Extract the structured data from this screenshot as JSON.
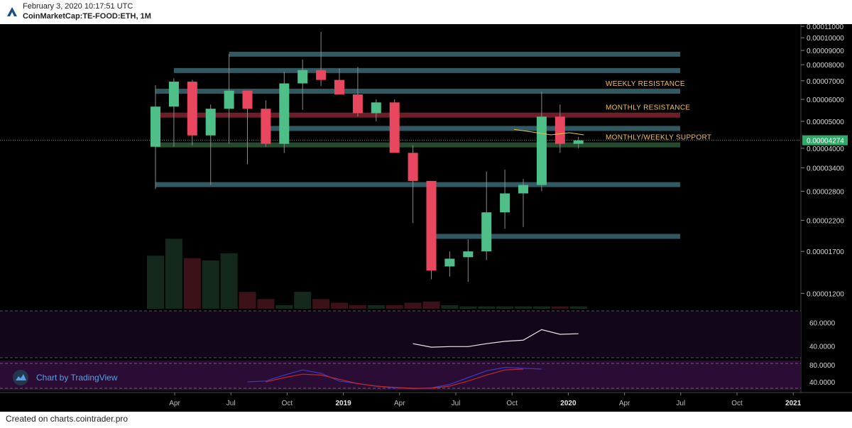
{
  "header": {
    "timestamp": "February 3, 2020 10:17:51 UTC",
    "symbol": "CoinMarketCap:TE-FOOD:ETH, 1M"
  },
  "footer": {
    "credit": "Created on charts.cointrader.pro"
  },
  "watermark": {
    "label": "Chart by TradingView"
  },
  "colors": {
    "background": "#000000",
    "up": "#4fbf8a",
    "down": "#e9475f",
    "resistance_band": "#3d6f7a",
    "monthly_resistance": "#8b2430",
    "green_band": "#2e5e3a",
    "price_tag": "#2faa6a",
    "annotation": "#f0c060",
    "oscillator_bg": "#12061a",
    "oscillator2_bg": "#2a0c35"
  },
  "chart_data": [
    {
      "type": "candlestick",
      "title": "",
      "scale": "log",
      "ylim": [
        1.05e-05,
        0.000112
      ],
      "price_axis_ticks": [
        "0.00011000",
        "0.00010000",
        "0.00009000",
        "0.00008000",
        "0.00007000",
        "0.00006000",
        "0.00005000",
        "0.00004000",
        "0.00003400",
        "0.00002800",
        "0.00002200",
        "0.00001700",
        "0.00001200"
      ],
      "last_price_label": "0.00004274",
      "time_axis_labels": [
        "Apr",
        "Jul",
        "Oct",
        "2019",
        "Apr",
        "Jul",
        "Oct",
        "2020",
        "Apr",
        "Jul",
        "Oct",
        "2021"
      ],
      "candles": [
        {
          "o": 4.05e-05,
          "h": 6.75e-05,
          "l": 2.85e-05,
          "c": 5.65e-05
        },
        {
          "o": 5.65e-05,
          "h": 7.15e-05,
          "l": 4.05e-05,
          "c": 6.95e-05
        },
        {
          "o": 6.95e-05,
          "h": 7.05e-05,
          "l": 4.1e-05,
          "c": 4.45e-05
        },
        {
          "o": 4.45e-05,
          "h": 5.75e-05,
          "l": 2.95e-05,
          "c": 5.55e-05
        },
        {
          "o": 5.55e-05,
          "h": 8.75e-05,
          "l": 4.15e-05,
          "c": 6.45e-05
        },
        {
          "o": 6.45e-05,
          "h": 6.45e-05,
          "l": 3.5e-05,
          "c": 5.55e-05
        },
        {
          "o": 5.55e-05,
          "h": 5.95e-05,
          "l": 4.05e-05,
          "c": 4.15e-05
        },
        {
          "o": 4.15e-05,
          "h": 7.55e-05,
          "l": 3.85e-05,
          "c": 6.85e-05
        },
        {
          "o": 6.85e-05,
          "h": 8.35e-05,
          "l": 5.5e-05,
          "c": 7.65e-05
        },
        {
          "o": 7.65e-05,
          "h": 0.000105,
          "l": 6.7e-05,
          "c": 7.05e-05
        },
        {
          "o": 7.05e-05,
          "h": 7.75e-05,
          "l": 6.3e-05,
          "c": 6.25e-05
        },
        {
          "o": 6.25e-05,
          "h": 7.85e-05,
          "l": 5.2e-05,
          "c": 5.35e-05
        },
        {
          "o": 5.35e-05,
          "h": 6e-05,
          "l": 5e-05,
          "c": 5.85e-05
        },
        {
          "o": 5.85e-05,
          "h": 6e-05,
          "l": 3.85e-05,
          "c": 3.85e-05
        },
        {
          "o": 3.85e-05,
          "h": 4.1e-05,
          "l": 2.15e-05,
          "c": 3.05e-05
        },
        {
          "o": 3.05e-05,
          "h": 3.05e-05,
          "l": 1.35e-05,
          "c": 1.45e-05
        },
        {
          "o": 1.5e-05,
          "h": 1.7e-05,
          "l": 1.38e-05,
          "c": 1.6e-05
        },
        {
          "o": 1.62e-05,
          "h": 1.88e-05,
          "l": 1.32e-05,
          "c": 1.7e-05
        },
        {
          "o": 1.7e-05,
          "h": 3.3e-05,
          "l": 1.58e-05,
          "c": 2.35e-05
        },
        {
          "o": 2.35e-05,
          "h": 3.35e-05,
          "l": 2.05e-05,
          "c": 2.75e-05
        },
        {
          "o": 2.75e-05,
          "h": 3.1e-05,
          "l": 2.08e-05,
          "c": 2.95e-05
        },
        {
          "o": 2.95e-05,
          "h": 6.4e-05,
          "l": 2.8e-05,
          "c": 5.2e-05
        },
        {
          "o": 5.2e-05,
          "h": 5.75e-05,
          "l": 3.85e-05,
          "c": 4.15e-05
        },
        {
          "o": 4.15e-05,
          "h": 4.4e-05,
          "l": 4e-05,
          "c": 4.27e-05
        }
      ],
      "volume": [
        44,
        58,
        42,
        40,
        46,
        14,
        8,
        3,
        14,
        8,
        5,
        3,
        3,
        3,
        5,
        6,
        3,
        2,
        2,
        2,
        2,
        2,
        2,
        2
      ],
      "horizontal_levels": [
        {
          "value": 8.7e-05,
          "x_start_index": 4,
          "color": "resistance_band"
        },
        {
          "value": 7.6e-05,
          "x_start_index": 1,
          "color": "resistance_band"
        },
        {
          "value": 6.4e-05,
          "x_start_index": 0,
          "color": "resistance_band"
        },
        {
          "value": 5.25e-05,
          "x_start_index": 0,
          "color": "monthly_resistance"
        },
        {
          "value": 4.7e-05,
          "x_start_index": 6,
          "color": "resistance_band"
        },
        {
          "value": 4.1e-05,
          "x_start_index": 0,
          "color": "green_band"
        },
        {
          "value": 2.95e-05,
          "x_start_index": 0,
          "color": "resistance_band"
        },
        {
          "value": 1.92e-05,
          "x_start_index": 15,
          "color": "resistance_band"
        }
      ],
      "annotations": [
        {
          "text": "WEEKLY RESISTANCE",
          "value": 6.4e-05
        },
        {
          "text": "MONTHLY RESISTANCE",
          "value": 5.25e-05
        },
        {
          "text": "MONTHLY/WEEKLY SUPPORT",
          "value": 4.1e-05
        }
      ],
      "yellow_line": [
        {
          "i": 19.5,
          "v": 4.68e-05
        },
        {
          "i": 21.5,
          "v": 4.47e-05
        },
        {
          "i": 22.5,
          "v": 4.55e-05
        },
        {
          "i": 23.3,
          "v": 4.47e-05
        }
      ]
    },
    {
      "type": "line",
      "title": "",
      "ylim": [
        30,
        70
      ],
      "y_ticks": [
        "60.0000",
        "40.0000"
      ],
      "series": [
        {
          "values": [
            {
              "i": 14,
              "v": 42
            },
            {
              "i": 15,
              "v": 39
            },
            {
              "i": 16,
              "v": 39.5
            },
            {
              "i": 17,
              "v": 39.5
            },
            {
              "i": 18,
              "v": 42
            },
            {
              "i": 19,
              "v": 44
            },
            {
              "i": 20,
              "v": 45
            },
            {
              "i": 21,
              "v": 54
            },
            {
              "i": 22,
              "v": 50
            },
            {
              "i": 23,
              "v": 50.5
            }
          ]
        }
      ]
    },
    {
      "type": "line",
      "title": "",
      "ylim": [
        20,
        90
      ],
      "y_ticks": [
        "80.0000",
        "40.0000"
      ],
      "series": [
        {
          "color": "#3a3cbf",
          "values": [
            {
              "i": 5,
              "v": 40
            },
            {
              "i": 6,
              "v": 42
            },
            {
              "i": 7,
              "v": 56
            },
            {
              "i": 8,
              "v": 68
            },
            {
              "i": 9,
              "v": 60
            },
            {
              "i": 10,
              "v": 42
            },
            {
              "i": 11,
              "v": 36
            },
            {
              "i": 12,
              "v": 30
            },
            {
              "i": 13,
              "v": 26
            },
            {
              "i": 14,
              "v": 24
            },
            {
              "i": 15,
              "v": 26
            },
            {
              "i": 16,
              "v": 34
            },
            {
              "i": 17,
              "v": 50
            },
            {
              "i": 18,
              "v": 66
            },
            {
              "i": 19,
              "v": 74
            },
            {
              "i": 20,
              "v": 72
            },
            {
              "i": 21,
              "v": 70
            }
          ]
        },
        {
          "color": "#c0282c",
          "values": [
            {
              "i": 6,
              "v": 40
            },
            {
              "i": 7,
              "v": 50
            },
            {
              "i": 8,
              "v": 58
            },
            {
              "i": 9,
              "v": 56
            },
            {
              "i": 10,
              "v": 46
            },
            {
              "i": 11,
              "v": 36
            },
            {
              "i": 12,
              "v": 30
            },
            {
              "i": 13,
              "v": 27
            },
            {
              "i": 14,
              "v": 25
            },
            {
              "i": 15,
              "v": 25
            },
            {
              "i": 16,
              "v": 30
            },
            {
              "i": 17,
              "v": 42
            },
            {
              "i": 18,
              "v": 56
            },
            {
              "i": 19,
              "v": 68
            },
            {
              "i": 20,
              "v": 70
            }
          ]
        }
      ]
    }
  ]
}
